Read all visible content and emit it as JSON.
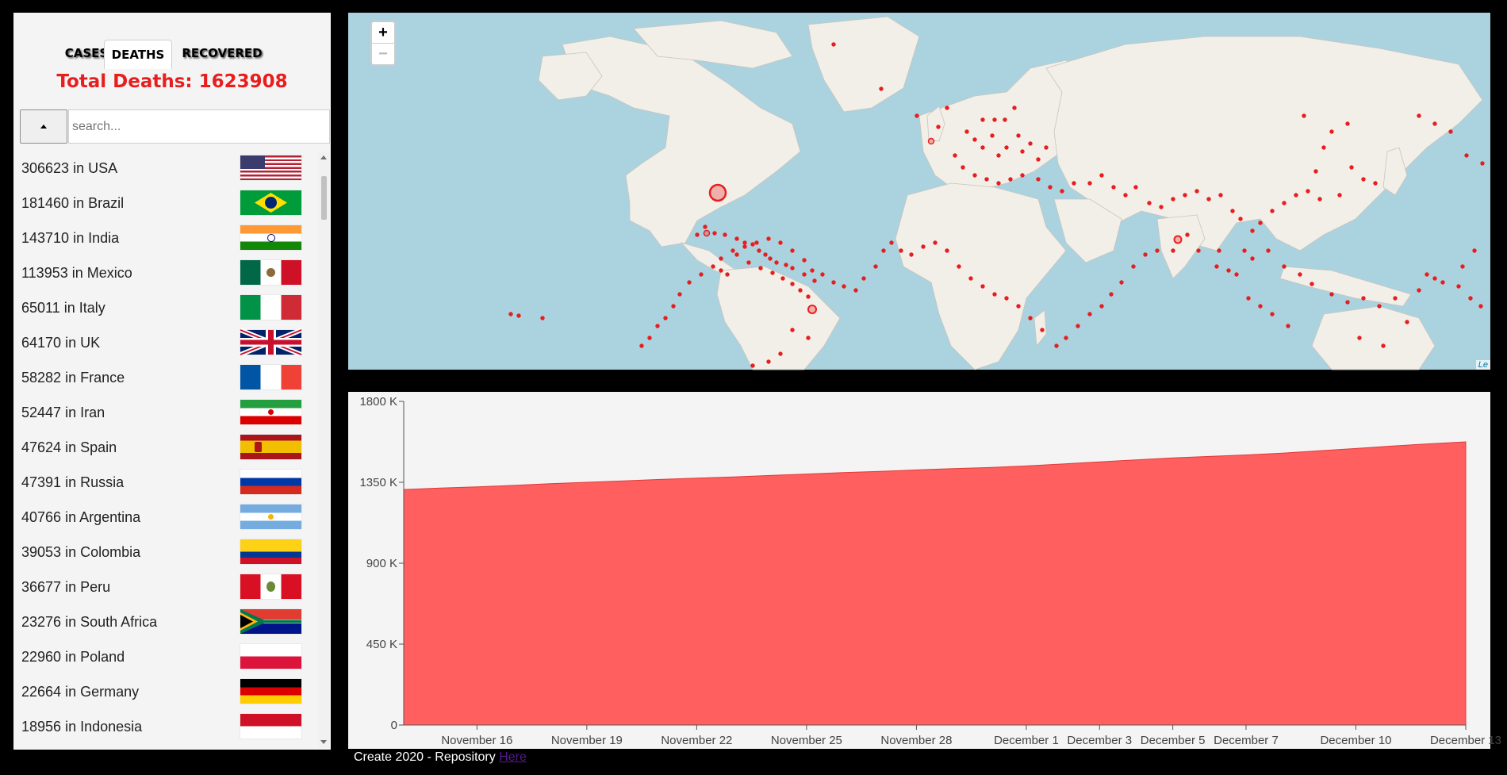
{
  "tabs": [
    {
      "label": "CASES",
      "active": false
    },
    {
      "label": "DEATHS",
      "active": true
    },
    {
      "label": "RECOVERED",
      "active": false
    }
  ],
  "total": {
    "label": "Total Deaths:",
    "value": "1623908",
    "color": "#e81e1e"
  },
  "sort_button": {
    "icon": "sort-ascending-triangle-icon"
  },
  "search": {
    "placeholder": "search...",
    "value": ""
  },
  "countries": [
    {
      "count": "306623",
      "name": "USA",
      "flag": "flag-usa-icon"
    },
    {
      "count": "181460",
      "name": "Brazil",
      "flag": "flag-brazil-icon"
    },
    {
      "count": "143710",
      "name": "India",
      "flag": "flag-india-icon"
    },
    {
      "count": "113953",
      "name": "Mexico",
      "flag": "flag-mexico-icon"
    },
    {
      "count": "65011",
      "name": "Italy",
      "flag": "flag-italy-icon"
    },
    {
      "count": "64170",
      "name": "UK",
      "flag": "flag-uk-icon"
    },
    {
      "count": "58282",
      "name": "France",
      "flag": "flag-france-icon"
    },
    {
      "count": "52447",
      "name": "Iran",
      "flag": "flag-iran-icon"
    },
    {
      "count": "47624",
      "name": "Spain",
      "flag": "flag-spain-icon"
    },
    {
      "count": "47391",
      "name": "Russia",
      "flag": "flag-russia-icon"
    },
    {
      "count": "40766",
      "name": "Argentina",
      "flag": "flag-argentina-icon"
    },
    {
      "count": "39053",
      "name": "Colombia",
      "flag": "flag-colombia-icon"
    },
    {
      "count": "36677",
      "name": "Peru",
      "flag": "flag-peru-icon"
    },
    {
      "count": "23276",
      "name": "South Africa",
      "flag": "flag-south-africa-icon"
    },
    {
      "count": "22960",
      "name": "Poland",
      "flag": "flag-poland-icon"
    },
    {
      "count": "22664",
      "name": "Germany",
      "flag": "flag-germany-icon"
    },
    {
      "count": "18956",
      "name": "Indonesia",
      "flag": "flag-indonesia-icon"
    }
  ],
  "row_separator": "in",
  "map": {
    "zoom_in": "+",
    "zoom_out": "−",
    "attribution": "Le",
    "colors": {
      "ocean": "#aad3df",
      "land": "#f2efe9",
      "marker": "#e81e1e"
    }
  },
  "chart_data": {
    "type": "area",
    "x": [
      "November 14",
      "November 15",
      "November 16",
      "November 17",
      "November 18",
      "November 19",
      "November 20",
      "November 21",
      "November 22",
      "November 23",
      "November 24",
      "November 25",
      "November 26",
      "November 27",
      "November 28",
      "November 29",
      "November 30",
      "December 1",
      "December 2",
      "December 3",
      "December 4",
      "December 5",
      "December 6",
      "December 7",
      "December 8",
      "December 9",
      "December 10",
      "December 11",
      "December 12",
      "December 13"
    ],
    "series": [
      {
        "values": [
          1310000,
          1318000,
          1325000,
          1333000,
          1342000,
          1350000,
          1358000,
          1366000,
          1373000,
          1380000,
          1388000,
          1396000,
          1404000,
          1411000,
          1419000,
          1426000,
          1432000,
          1441000,
          1452000,
          1464000,
          1475000,
          1486000,
          1494000,
          1502000,
          1512000,
          1525000,
          1538000,
          1552000,
          1564000,
          1575000
        ],
        "color": "#ff5f5f"
      }
    ],
    "x_tick_labels": [
      "November 16",
      "November 19",
      "November 22",
      "November 25",
      "November 28",
      "December 1",
      "December 3",
      "December 5",
      "December 7",
      "December 10",
      "December 13"
    ],
    "y_ticks": [
      0,
      450000,
      900000,
      1350000,
      1800000
    ],
    "y_tick_labels": [
      "0",
      "450 K",
      "900 K",
      "1350 K",
      "1800 K"
    ],
    "ylim": [
      0,
      1800000
    ],
    "grid": false
  },
  "footer": {
    "text": "Create 2020 - Repository",
    "link_text": "Here"
  }
}
